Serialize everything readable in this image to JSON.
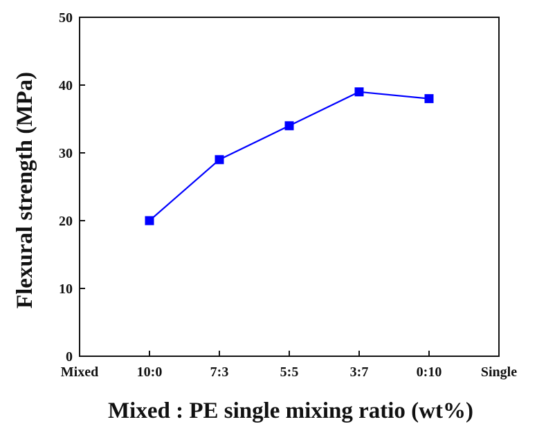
{
  "chart_data": {
    "type": "line",
    "title": "",
    "xlabel": "Mixed : PE single mixing ratio (wt%)",
    "ylabel": "Flexural strength (MPa)",
    "x_tick_labels": [
      "Mixed",
      "10:0",
      "7:3",
      "5:5",
      "3:7",
      "0:10",
      "Single"
    ],
    "categories": [
      "10:0",
      "7:3",
      "5:5",
      "3:7",
      "0:10"
    ],
    "ylim": [
      0,
      50
    ],
    "yticks": [
      "0",
      "10",
      "20",
      "30",
      "40",
      "50"
    ],
    "grid": false,
    "series": [
      {
        "name": "Flexural strength",
        "values": [
          20,
          29,
          34,
          39,
          38
        ]
      }
    ],
    "colors": {
      "series": "#0000ff",
      "axis": "#111111"
    },
    "marker": "square"
  }
}
